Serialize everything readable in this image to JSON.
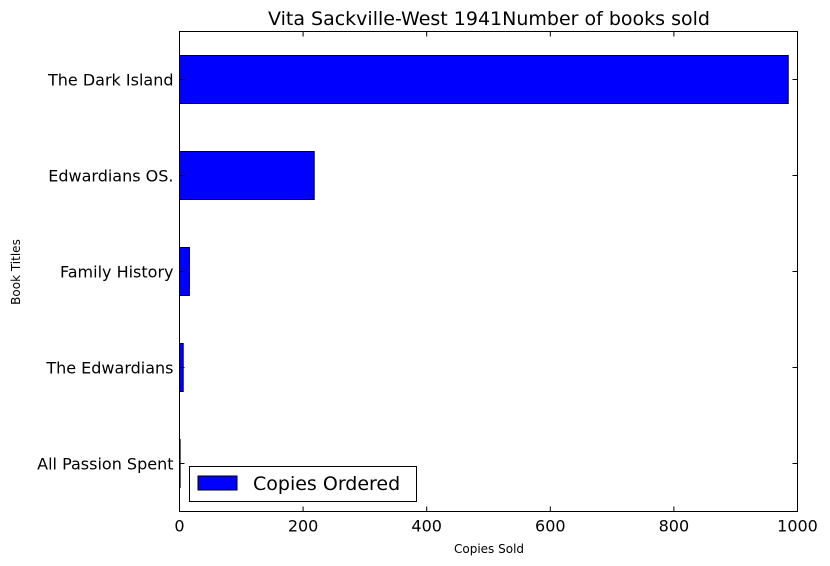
{
  "chart_data": {
    "type": "bar",
    "orientation": "horizontal",
    "title": "Vita Sackville-West 1941Number of books sold",
    "xlabel": "Copies Sold",
    "ylabel": "Book Titles",
    "xlim": [
      0,
      1000
    ],
    "x_ticks": [
      0,
      200,
      400,
      600,
      800,
      1000
    ],
    "categories": [
      "The Dark Island",
      "Edwardians OS.",
      "Family History",
      "The Edwardians",
      "All Passion Spent"
    ],
    "series": [
      {
        "name": "Copies Ordered",
        "values": [
          985,
          218,
          16,
          6,
          1
        ]
      }
    ],
    "grid": false,
    "legend_position": "bottom-left",
    "colors": {
      "bar": "#0000ff",
      "edge": "#000000"
    }
  }
}
